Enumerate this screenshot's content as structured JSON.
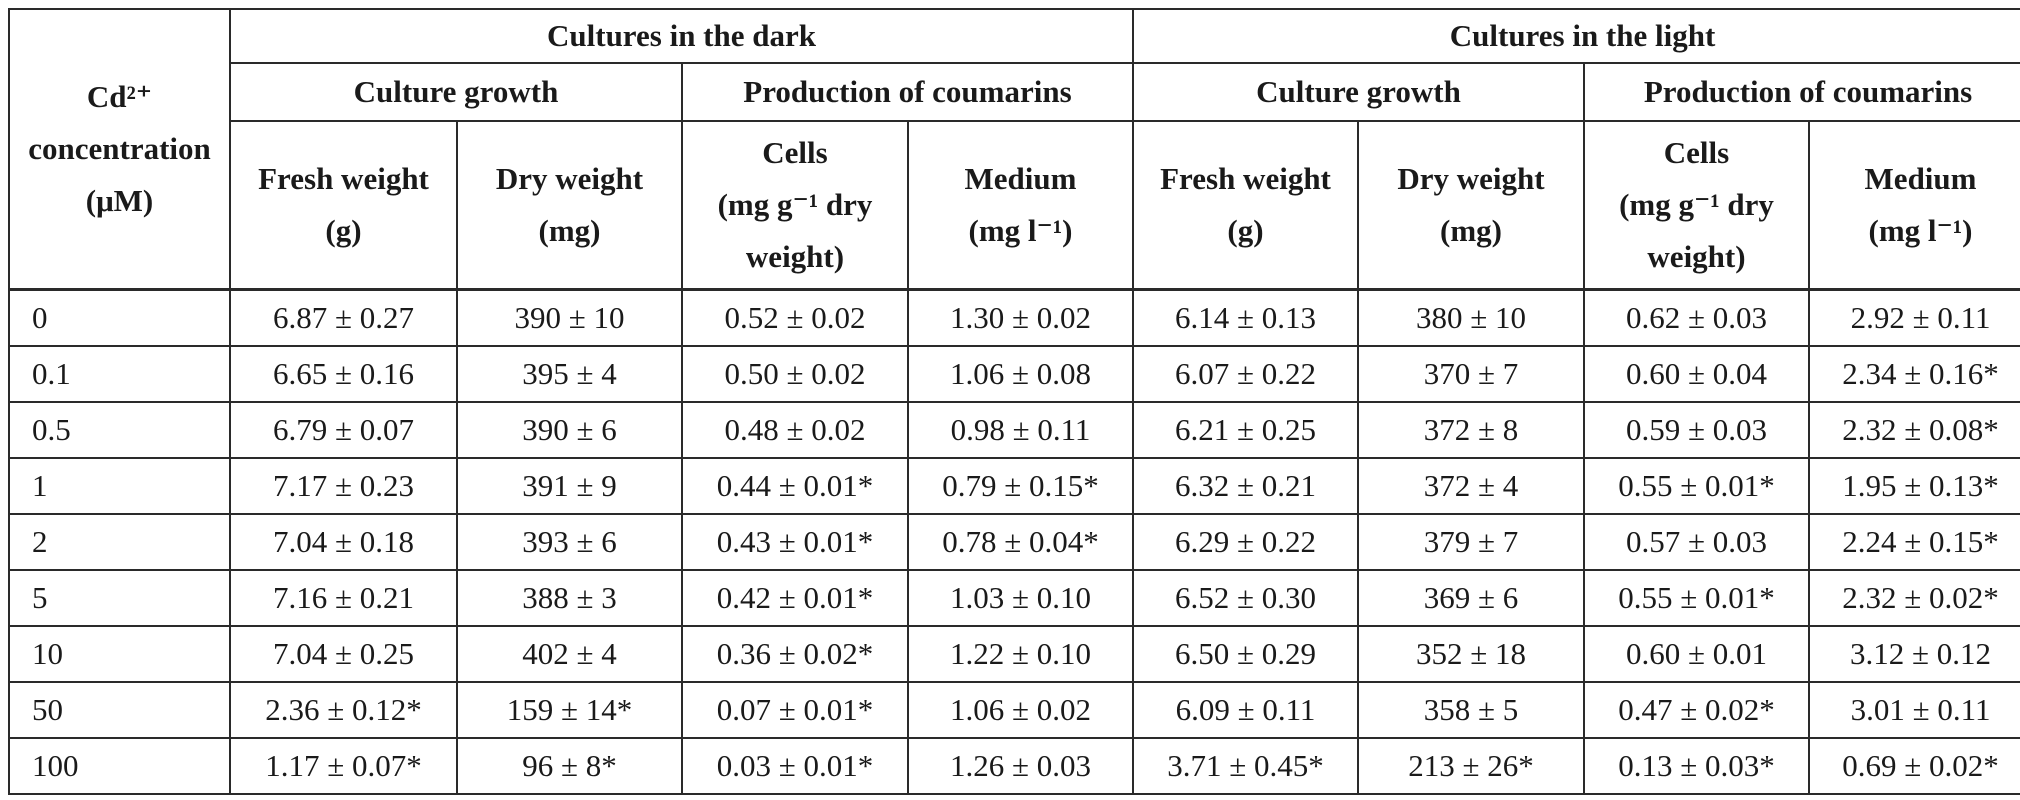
{
  "header": {
    "conc_line1": "Cd²⁺",
    "conc_line2": "concentration",
    "conc_line3": "(μM)",
    "dark": "Cultures in the dark",
    "light": "Cultures in the light",
    "growth": "Culture growth",
    "production": "Production of coumarins",
    "fresh_line1": "Fresh weight",
    "fresh_line2": "(g)",
    "dry_line1": "Dry weight",
    "dry_line2": "(mg)",
    "cells_line1": "Cells",
    "cells_line2": "(mg g⁻¹ dry",
    "cells_line3": "weight)",
    "medium_line1": "Medium",
    "medium_line2": "(mg l⁻¹)"
  },
  "rows": [
    {
      "conc": "0",
      "cells": [
        "6.87 ± 0.27",
        "390 ± 10",
        "0.52 ± 0.02",
        "1.30 ± 0.02",
        "6.14 ± 0.13",
        "380 ± 10",
        "0.62 ± 0.03",
        "2.92 ± 0.11"
      ]
    },
    {
      "conc": "0.1",
      "cells": [
        "6.65 ± 0.16",
        "395 ± 4",
        "0.50 ± 0.02",
        "1.06 ± 0.08",
        "6.07 ± 0.22",
        "370 ± 7",
        "0.60 ± 0.04",
        "2.34 ± 0.16*"
      ]
    },
    {
      "conc": "0.5",
      "cells": [
        "6.79 ± 0.07",
        "390 ± 6",
        "0.48 ± 0.02",
        "0.98 ± 0.11",
        "6.21 ± 0.25",
        "372 ± 8",
        "0.59 ± 0.03",
        "2.32 ± 0.08*"
      ]
    },
    {
      "conc": "1",
      "cells": [
        "7.17 ± 0.23",
        "391 ± 9",
        "0.44 ± 0.01*",
        "0.79 ± 0.15*",
        "6.32 ± 0.21",
        "372 ± 4",
        "0.55 ± 0.01*",
        "1.95 ± 0.13*"
      ]
    },
    {
      "conc": "2",
      "cells": [
        "7.04 ± 0.18",
        "393 ± 6",
        "0.43 ± 0.01*",
        "0.78 ± 0.04*",
        "6.29 ± 0.22",
        "379 ± 7",
        "0.57 ± 0.03",
        "2.24 ± 0.15*"
      ]
    },
    {
      "conc": "5",
      "cells": [
        "7.16 ± 0.21",
        "388 ± 3",
        "0.42 ± 0.01*",
        "1.03 ± 0.10",
        "6.52 ± 0.30",
        "369 ± 6",
        "0.55 ± 0.01*",
        "2.32 ± 0.02*"
      ]
    },
    {
      "conc": "10",
      "cells": [
        "7.04 ± 0.25",
        "402 ± 4",
        "0.36 ± 0.02*",
        "1.22 ± 0.10",
        "6.50 ± 0.29",
        "352 ± 18",
        "0.60 ± 0.01",
        "3.12 ± 0.12"
      ]
    },
    {
      "conc": "50",
      "cells": [
        "2.36 ± 0.12*",
        "159 ± 14*",
        "0.07 ± 0.01*",
        "1.06 ± 0.02",
        "6.09 ± 0.11",
        "358 ± 5",
        "0.47 ± 0.02*",
        "3.01 ± 0.11"
      ]
    },
    {
      "conc": "100",
      "cells": [
        "1.17 ± 0.07*",
        "96 ± 8*",
        "0.03 ± 0.01*",
        "1.26 ± 0.03",
        "3.71 ± 0.45*",
        "213 ± 26*",
        "0.13 ± 0.03*",
        "0.69 ± 0.02*"
      ]
    }
  ]
}
